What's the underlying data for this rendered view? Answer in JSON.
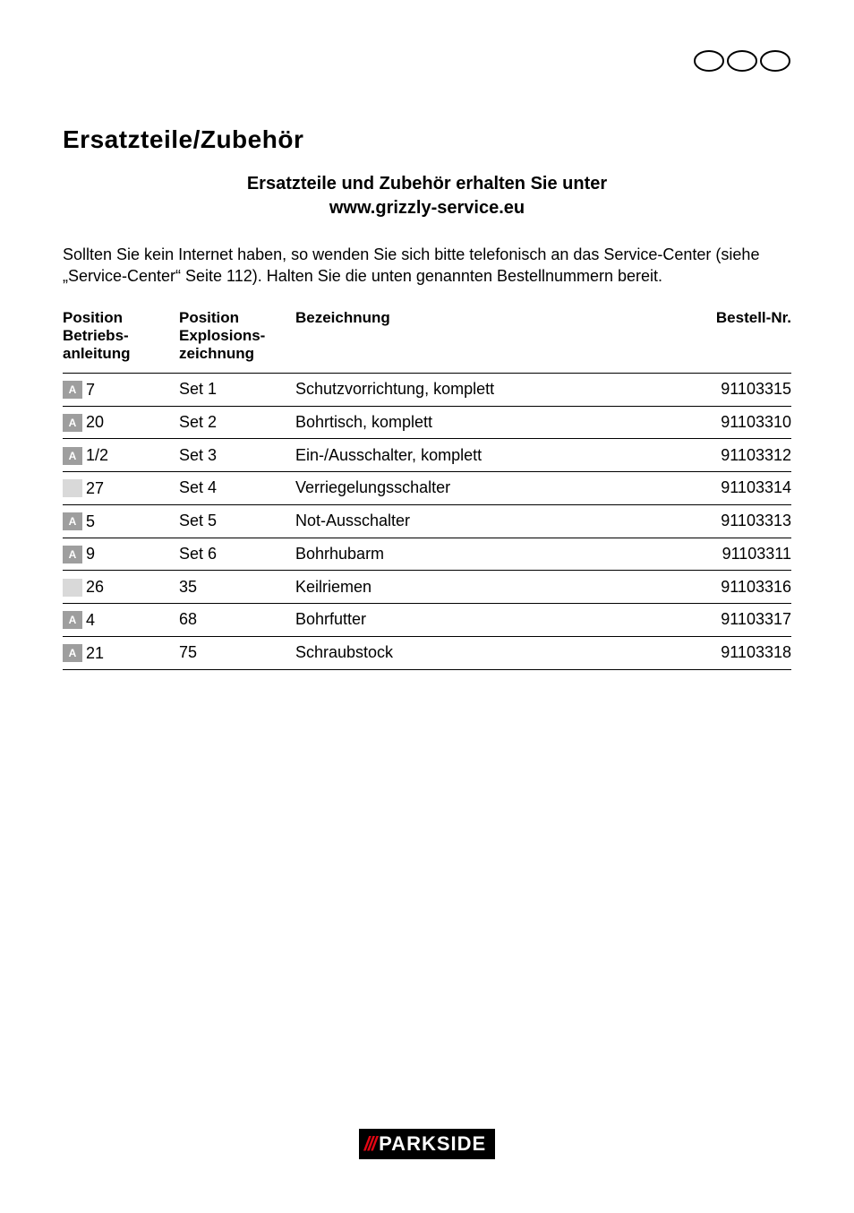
{
  "header": {
    "icon_name": "three-ovals-icon",
    "oval_count": 3,
    "oval_stroke": "#000000",
    "oval_stroke_width": 2,
    "oval_rx": 16,
    "oval_ry": 11
  },
  "section_title": "Ersatzteile/Zubehör",
  "subtitle_line1": "Ersatzteile und Zubehör erhalten Sie unter",
  "subtitle_line2": "www.grizzly-service.eu",
  "intro_text": "Sollten Sie kein Internet haben, so wenden Sie sich bitte telefonisch an das Service-Center (siehe „Service-Center“ Seite 112). Halten Sie die unten genannten Bestellnummern bereit.",
  "table": {
    "columns": {
      "pos_betrieb": "Position\nBetriebs-\nanleitung",
      "pos_explosion": "Position\nExplosions-\nzeichnung",
      "bezeichnung": "Bezeichnung",
      "bestell": "Bestell-Nr."
    },
    "tag_letter": "A",
    "tag_bg_color": "#9e9e9e",
    "tag_blank_bg_color": "#d9d9d9",
    "tag_text_color": "#ffffff",
    "row_border_color": "#000000",
    "rows": [
      {
        "tag": "A",
        "pos1": "7",
        "pos2": "Set 1",
        "name": "Schutzvorrichtung, komplett",
        "order": "91103315"
      },
      {
        "tag": "A",
        "pos1": "20",
        "pos2": "Set 2",
        "name": "Bohrtisch, komplett",
        "order": "91103310"
      },
      {
        "tag": "A",
        "pos1": "1/2",
        "pos2": "Set 3",
        "name": "Ein-/Ausschalter, komplett",
        "order": "91103312"
      },
      {
        "tag": "",
        "pos1": "27",
        "pos2": "Set 4",
        "name": "Verriegelungsschalter",
        "order": "91103314"
      },
      {
        "tag": "A",
        "pos1": "5",
        "pos2": "Set 5",
        "name": "Not-Ausschalter",
        "order": "91103313"
      },
      {
        "tag": "A",
        "pos1": "9",
        "pos2": "Set 6",
        "name": "Bohrhubarm",
        "order": "91103311"
      },
      {
        "tag": "",
        "pos1": "26",
        "pos2": "35",
        "name": "Keilriemen",
        "order": "91103316"
      },
      {
        "tag": "A",
        "pos1": "4",
        "pos2": "68",
        "name": "Bohrfutter",
        "order": "91103317"
      },
      {
        "tag": "A",
        "pos1": "21",
        "pos2": "75",
        "name": "Schraubstock",
        "order": "91103318"
      }
    ]
  },
  "brand": {
    "slashes": "///",
    "name": "PARKSIDE",
    "slash_color": "#e30613",
    "bg_color": "#000000",
    "text_color": "#ffffff"
  }
}
